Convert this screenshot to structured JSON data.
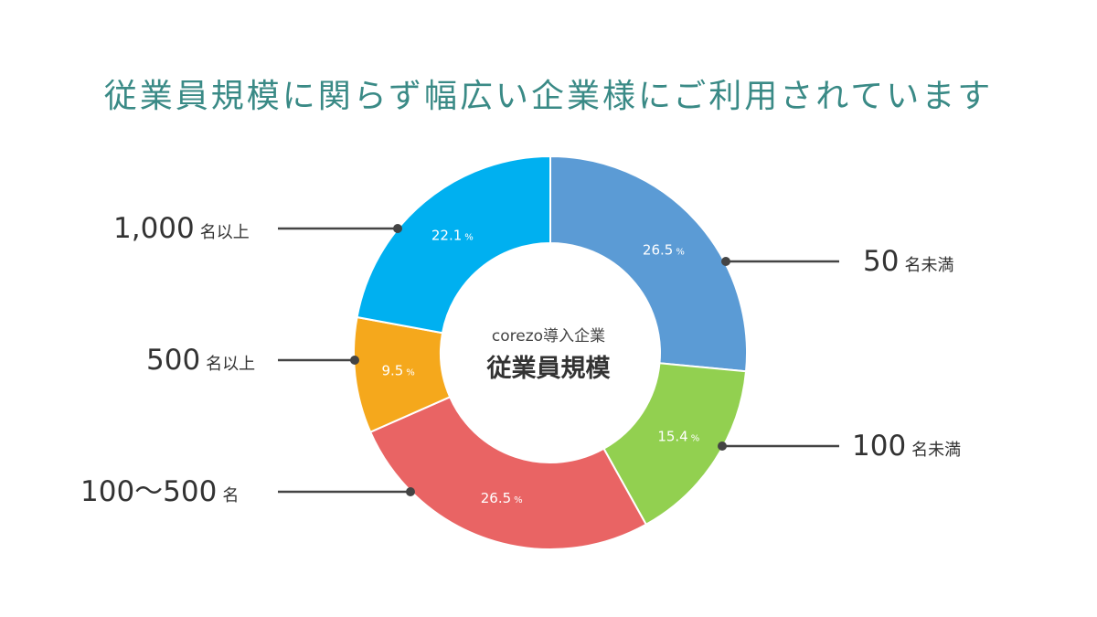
{
  "title": "従業員規模に関らず幅広い企業様にご利用されています",
  "chart_data": {
    "type": "pie",
    "center_label": {
      "line1": "corezo導入企業",
      "line2": "従業員規模"
    },
    "slices": [
      {
        "label_num": "50",
        "label_unit": "名未満",
        "value": 26.5,
        "color": "#5b9bd5"
      },
      {
        "label_num": "100",
        "label_unit": "名未満",
        "value": 15.4,
        "color": "#92d050"
      },
      {
        "label_num": "100〜500",
        "label_unit": "名",
        "value": 26.5,
        "color": "#e96464"
      },
      {
        "label_num": "500",
        "label_unit": "名以上",
        "value": 9.5,
        "color": "#f5a81c"
      },
      {
        "label_num": "1,000",
        "label_unit": "名以上",
        "value": 22.1,
        "color": "#00b0f0"
      }
    ],
    "value_suffix": "%"
  }
}
